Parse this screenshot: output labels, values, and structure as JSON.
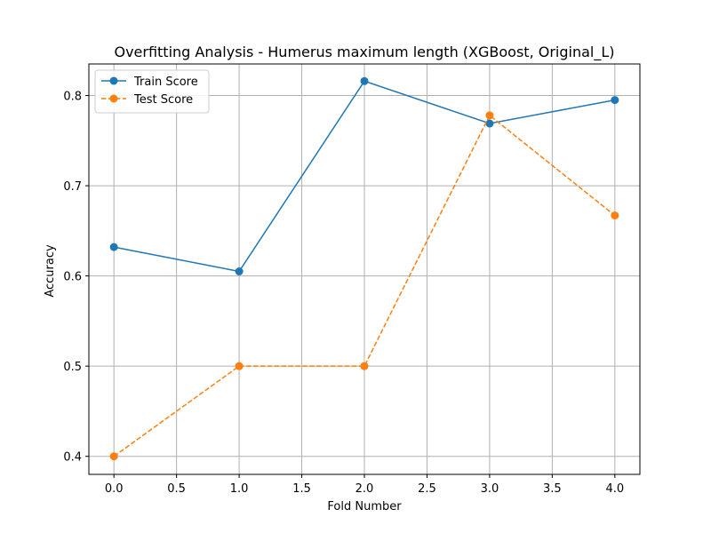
{
  "chart_data": {
    "type": "line",
    "title": "Overfitting Analysis - Humerus maximum length (XGBoost, Original_L)",
    "xlabel": "Fold Number",
    "ylabel": "Accuracy",
    "xlim": [
      -0.2,
      4.2
    ],
    "ylim": [
      0.38,
      0.835
    ],
    "xticks": [
      0.0,
      0.5,
      1.0,
      1.5,
      2.0,
      2.5,
      3.0,
      3.5,
      4.0
    ],
    "xtick_labels": [
      "0.0",
      "0.5",
      "1.0",
      "1.5",
      "2.0",
      "2.5",
      "3.0",
      "3.5",
      "4.0"
    ],
    "yticks": [
      0.4,
      0.5,
      0.6,
      0.7,
      0.8
    ],
    "ytick_labels": [
      "0.4",
      "0.5",
      "0.6",
      "0.7",
      "0.8"
    ],
    "grid": true,
    "legend_position": "upper-left",
    "x": [
      0,
      1,
      2,
      3,
      4
    ],
    "series": [
      {
        "name": "Train Score",
        "values": [
          0.632,
          0.605,
          0.816,
          0.769,
          0.795
        ],
        "color": "#1f77b4",
        "line_style": "solid",
        "marker": "circle"
      },
      {
        "name": "Test Score",
        "values": [
          0.4,
          0.5,
          0.5,
          0.778,
          0.667
        ],
        "color": "#ff7f0e",
        "line_style": "dashed",
        "marker": "circle"
      }
    ]
  }
}
